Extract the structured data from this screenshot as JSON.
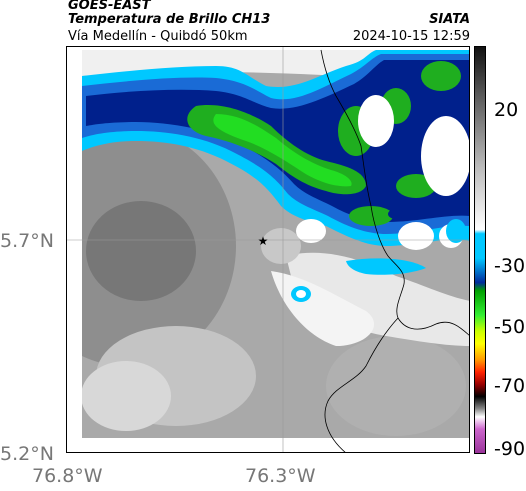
{
  "header": {
    "satellite": "GOES-EAST",
    "product": "Temperatura de Brillo CH13",
    "route": "Vía Medellín - Quibdó 50km",
    "org": "SIATA",
    "datetime": "2024-10-15 12:59"
  },
  "axes": {
    "y_ticks": [
      "5.7°N",
      "5.2°N"
    ],
    "x_ticks": [
      "76.8°W",
      "76.3°W"
    ]
  },
  "colorbar": {
    "ticks": [
      "20",
      "-30",
      "-50",
      "-70",
      "-90"
    ],
    "colors": {
      "white": "#ffffff",
      "gray_light": "#cfcfcf",
      "gray_dark": "#4a4a4a",
      "cyan": "#00bfff",
      "blue_dark": "#001a8c",
      "green": "#00cc00",
      "yellow": "#ffff00",
      "orange": "#ff8000",
      "red": "#cc0000",
      "black": "#000000",
      "magenta": "#cc33cc"
    }
  },
  "map": {
    "marker": "star-icon"
  }
}
